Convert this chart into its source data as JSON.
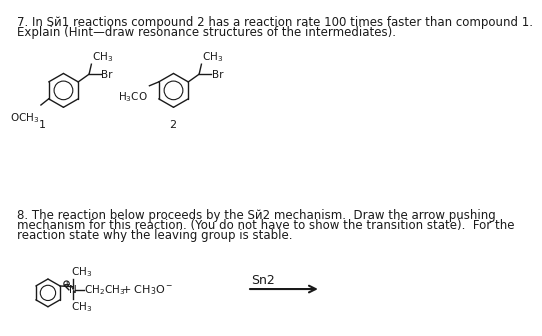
{
  "background_color": "#ffffff",
  "title_q7": "7. In Sй1 reactions compound 2 has a reaction rate 100 times faster than compound 1.",
  "subtitle_q7": "Explain (Hint—draw resonance structures of the intermediates).",
  "title_q8_line1": "8. The reaction below proceeds by the Sй2 mechanism.  Draw the arrow pushing",
  "title_q8_line2": "mechanism for this reaction. (You do not have to show the transition state).  For the",
  "title_q8_line3": "reaction state why the leaving group is stable.",
  "compound1_label": "1",
  "compound2_label": "2",
  "sn2_label": "Sn2",
  "font_size_title": 8.5,
  "font_size_label": 8,
  "font_size_chem": 7.5,
  "text_color": "#1a1a1a",
  "line_color": "#1a1a1a"
}
